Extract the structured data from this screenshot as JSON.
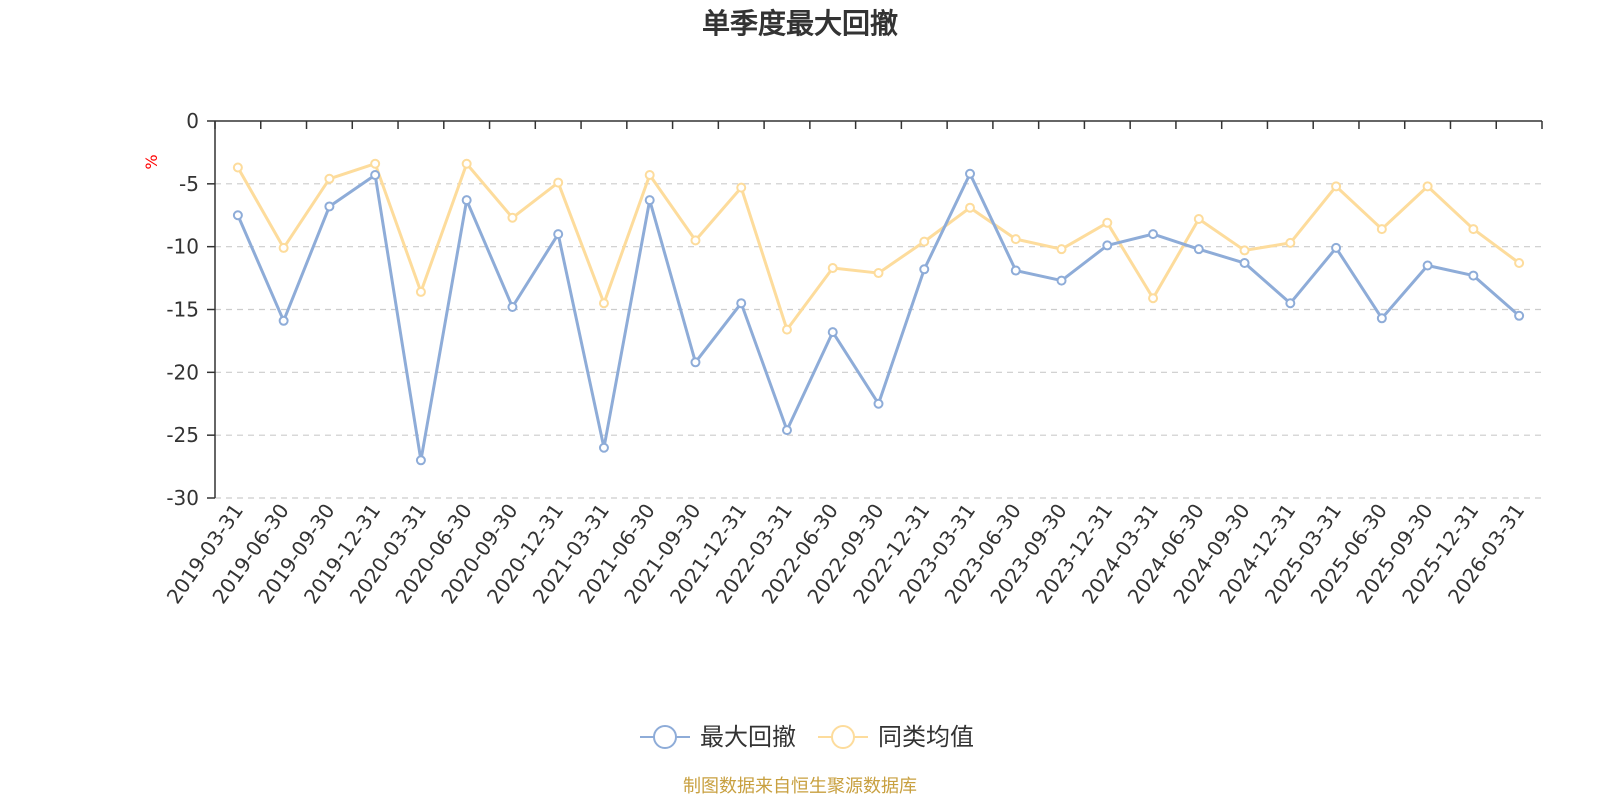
{
  "chart_data": {
    "type": "line",
    "title": "单季度最大回撤",
    "ylabel": "%",
    "ylim": [
      -30,
      0
    ],
    "yticks": [
      0,
      -5,
      -10,
      -15,
      -20,
      -25,
      -30
    ],
    "categories": [
      "2019-03-31",
      "2019-06-30",
      "2019-09-30",
      "2019-12-31",
      "2020-03-31",
      "2020-06-30",
      "2020-09-30",
      "2020-12-31",
      "2021-03-31",
      "2021-06-30",
      "2021-09-30",
      "2021-12-31",
      "2022-03-31",
      "2022-06-30",
      "2022-09-30",
      "2022-12-31",
      "2023-03-31",
      "2023-06-30",
      "2023-09-30",
      "2023-12-31",
      "2024-03-31",
      "2024-06-30",
      "2024-09-30",
      "2024-12-31",
      "2025-03-31",
      "2025-06-30",
      "2025-09-30",
      "2025-12-31",
      "2026-03-31"
    ],
    "series": [
      {
        "name": "最大回撤",
        "color": "#8eacd8",
        "values": [
          -7.5,
          -15.9,
          -6.8,
          -4.3,
          -27.0,
          -6.3,
          -14.8,
          -9.0,
          -26.0,
          -6.3,
          -19.2,
          -14.5,
          -24.6,
          -16.8,
          -22.5,
          -11.8,
          -4.2,
          -11.9,
          -12.7,
          -9.9,
          -9.0,
          -10.2,
          -11.3,
          -14.5,
          -10.1,
          -15.7,
          -11.5,
          -12.3,
          -15.5
        ]
      },
      {
        "name": "同类均值",
        "color": "#fddc9c",
        "values": [
          -3.7,
          -10.1,
          -4.6,
          -3.4,
          -13.6,
          -3.4,
          -7.7,
          -4.9,
          -14.5,
          -4.3,
          -9.5,
          -5.3,
          -16.6,
          -11.7,
          -12.1,
          -9.6,
          -6.9,
          -9.4,
          -10.2,
          -8.1,
          -14.1,
          -7.8,
          -10.3,
          -9.7,
          -5.2,
          -8.6,
          -5.2,
          -8.6,
          -11.3
        ]
      }
    ],
    "legend_position": "bottom-center",
    "grid": "horizontal-dashed"
  },
  "footer": {
    "source_text": "制图数据来自恒生聚源数据库"
  },
  "colors": {
    "title": "#333333",
    "axis": "#333333",
    "grid": "#cccccc",
    "ylabel": "#ff0000",
    "source": "#c8a040"
  }
}
